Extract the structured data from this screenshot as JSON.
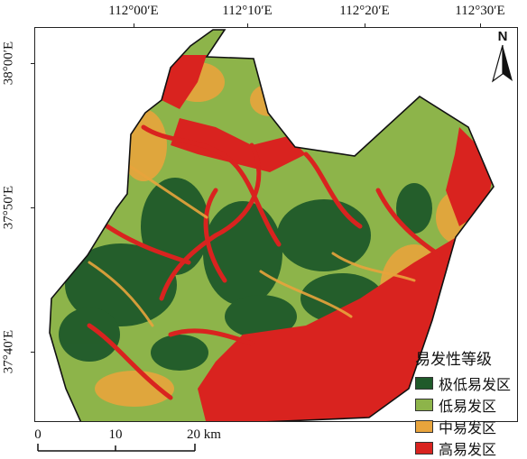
{
  "map": {
    "longitude_labels": [
      "112°00′E",
      "112°10′E",
      "112°20′E",
      "112°30′E"
    ],
    "latitude_labels": [
      "38°00′E",
      "37°50′E",
      "37°40′E"
    ]
  },
  "north_arrow": {
    "label": "N"
  },
  "legend": {
    "title": "易发性等级",
    "items": [
      {
        "label": "极低易发区",
        "color": "#1f5a2a"
      },
      {
        "label": "低易发区",
        "color": "#8db44a"
      },
      {
        "label": "中易发区",
        "color": "#e8a43c"
      },
      {
        "label": "高易发区",
        "color": "#d9231f"
      }
    ]
  },
  "scale_bar": {
    "labels": [
      "0",
      "10",
      "20 km"
    ]
  }
}
